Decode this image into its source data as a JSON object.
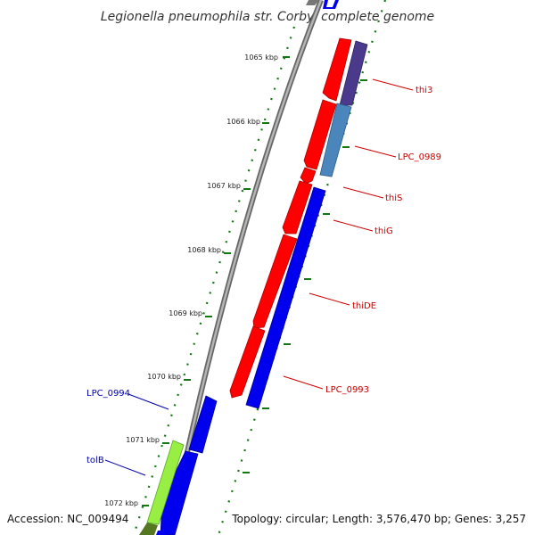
{
  "title": "Legionella pneumophila str. Corby, complete genome",
  "footer": {
    "accession": "Accession: NC_009494",
    "topology": "Topology: circular; Length: 3,576,470 bp; Genes: 3,257"
  },
  "ticks": [
    {
      "label": "1065 kbp"
    },
    {
      "label": "1066 kbp"
    },
    {
      "label": "1067 kbp"
    },
    {
      "label": "1068 kbp"
    },
    {
      "label": "1069 kbp"
    },
    {
      "label": "1070 kbp"
    },
    {
      "label": "1071 kbp"
    },
    {
      "label": "1072 kbp"
    }
  ],
  "genes": [
    {
      "name": "thi3",
      "color": "#cc0000"
    },
    {
      "name": "LPC_0989",
      "color": "#cc0000"
    },
    {
      "name": "thiS",
      "color": "#cc0000"
    },
    {
      "name": "thiG",
      "color": "#cc0000"
    },
    {
      "name": "thiDE",
      "color": "#cc0000"
    },
    {
      "name": "LPC_0993",
      "color": "#cc0000"
    },
    {
      "name": "LPC_0994",
      "color": "#0000aa"
    },
    {
      "name": "tolB",
      "color": "#0000aa"
    }
  ],
  "colors": {
    "backbone": "#8a8a8a",
    "forward_gene": "#ff0000",
    "reverse_gene": "#0000ee",
    "ticks": "#117711",
    "purple_feature": "#4b3a8c",
    "steelblue_feature": "#4a86bb",
    "lime_feature": "#99ee44"
  }
}
